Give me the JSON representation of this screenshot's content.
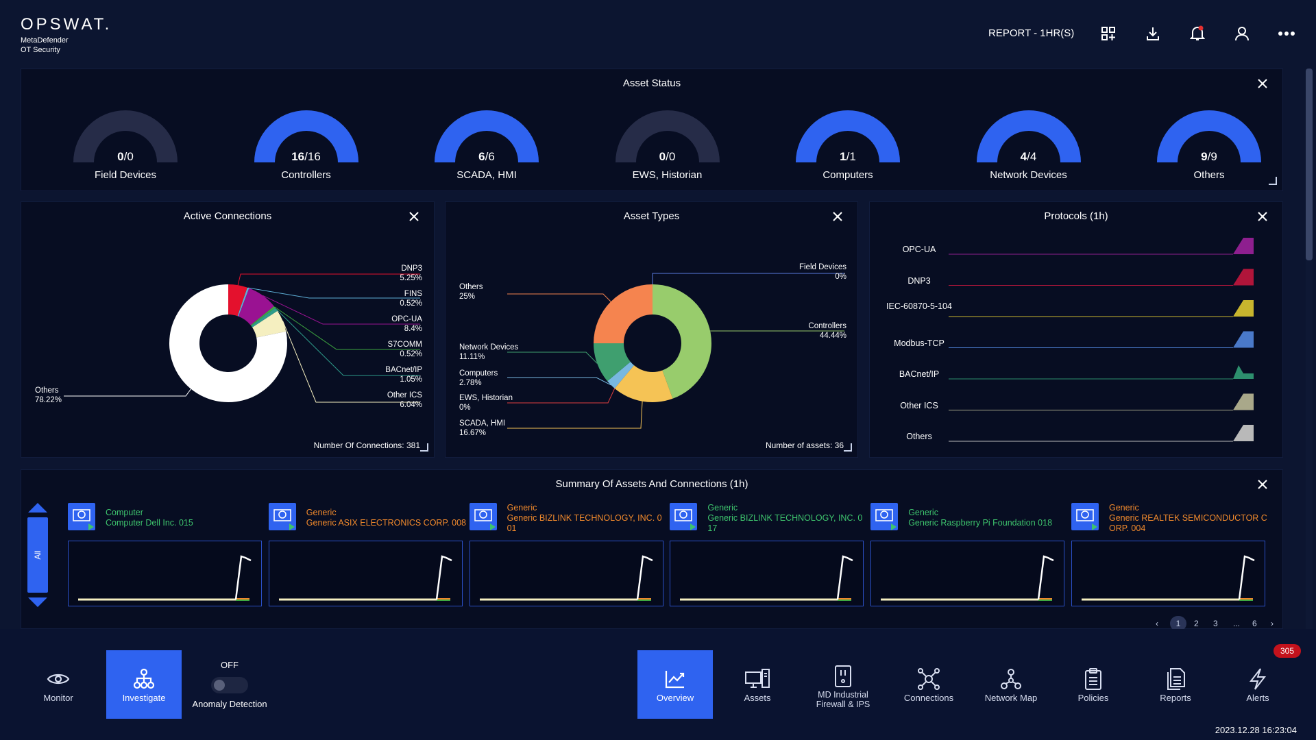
{
  "header": {
    "brand": "OPSWAT.",
    "product_line1": "MetaDefender",
    "product_line2": "OT Security",
    "report_label": "REPORT - 1HR(S)"
  },
  "asset_status": {
    "title": "Asset Status",
    "gauges": [
      {
        "label": "Field Devices",
        "num": "0",
        "den": "/0",
        "fraction": 0
      },
      {
        "label": "Controllers",
        "num": "16",
        "den": "/16",
        "fraction": 1
      },
      {
        "label": "SCADA, HMI",
        "num": "6",
        "den": "/6",
        "fraction": 1
      },
      {
        "label": "EWS, Historian",
        "num": "0",
        "den": "/0",
        "fraction": 0
      },
      {
        "label": "Computers",
        "num": "1",
        "den": "/1",
        "fraction": 1
      },
      {
        "label": "Network Devices",
        "num": "4",
        "den": "/4",
        "fraction": 1
      },
      {
        "label": "Others",
        "num": "9",
        "den": "/9",
        "fraction": 1
      }
    ]
  },
  "active_connections": {
    "title": "Active Connections",
    "footer": "Number Of Connections: 381"
  },
  "asset_types": {
    "title": "Asset Types",
    "footer": "Number of assets: 36"
  },
  "protocols": {
    "title": "Protocols (1h)",
    "rows": [
      {
        "name": "OPC-UA",
        "color": "#8e1f8f"
      },
      {
        "name": "DNP3",
        "color": "#b0153a"
      },
      {
        "name": "IEC-60870-5-104",
        "color": "#c8b52e"
      },
      {
        "name": "Modbus-TCP",
        "color": "#4a79c9"
      },
      {
        "name": "BACnet/IP",
        "color": "#2d8f6e"
      },
      {
        "name": "Other ICS",
        "color": "#a9a88a"
      },
      {
        "name": "Others",
        "color": "#b9b9b9"
      }
    ]
  },
  "chart_data": [
    {
      "type": "pie",
      "title": "Active Connections",
      "categories": [
        "DNP3",
        "FINS",
        "OPC-UA",
        "S7COMM",
        "BACnet/IP",
        "Other ICS",
        "Others"
      ],
      "values": [
        5.25,
        0.52,
        8.4,
        0.52,
        1.05,
        6.04,
        78.22
      ],
      "labels_text": [
        "5.25%",
        "0.52%",
        "8.4%",
        "0.52%",
        "1.05%",
        "6.04%",
        "78.22%"
      ],
      "colors": [
        "#e4112d",
        "#5fb0d8",
        "#9a1292",
        "#3ea840",
        "#2e9c8a",
        "#f5efc0",
        "#ffffff"
      ]
    },
    {
      "type": "pie",
      "title": "Asset Types",
      "categories": [
        "Controllers",
        "SCADA, HMI",
        "EWS, Historian",
        "Computers",
        "Network Devices",
        "Others",
        "Field Devices"
      ],
      "values": [
        44.44,
        16.67,
        0,
        2.78,
        11.11,
        25,
        0
      ],
      "labels_text": [
        "44.44%",
        "16.67%",
        "0%",
        "2.78%",
        "11.11%",
        "25%",
        "0%"
      ],
      "colors": [
        "#98cc6c",
        "#f5c355",
        "#e04040",
        "#78b8e0",
        "#3f9f6f",
        "#f5844f",
        "#5a7be0"
      ]
    }
  ],
  "summary": {
    "title": "Summary Of Assets And Connections (1h)",
    "filter_label": "All",
    "cards": [
      {
        "type": "Computer",
        "name": "Computer Dell Inc. 015",
        "color": "#3ec46d"
      },
      {
        "type": "Generic",
        "name": "Generic ASIX ELECTRONICS CORP. 008",
        "color": "#f28a2c"
      },
      {
        "type": "Generic",
        "name": "Generic BIZLINK TECHNOLOGY, INC. 0\n01",
        "color": "#f28a2c"
      },
      {
        "type": "Generic",
        "name": "Generic BIZLINK TECHNOLOGY, INC. 0\n17",
        "color": "#3ec46d"
      },
      {
        "type": "Generic",
        "name": "Generic Raspberry Pi Foundation 018",
        "color": "#3ec46d"
      },
      {
        "type": "Generic",
        "name": "Generic REALTEK SEMICONDUCTOR C\nORP. 004",
        "color": "#f28a2c"
      }
    ],
    "pager": {
      "p1": "1",
      "p2": "2",
      "p3": "3",
      "dots": "...",
      "last": "6"
    }
  },
  "footer": {
    "monitor": "Monitor",
    "investigate": "Investigate",
    "anomaly_state": "OFF",
    "anomaly_label": "Anomaly Detection",
    "overview": "Overview",
    "assets": "Assets",
    "firewall_line1": "MD Industrial",
    "firewall_line2": "Firewall & IPS",
    "connections": "Connections",
    "network_map": "Network Map",
    "policies": "Policies",
    "reports": "Reports",
    "alerts": "Alerts",
    "alerts_badge": "305",
    "datetime": "2023.12.28 16:23:04"
  },
  "icons": [
    "apps-add-icon",
    "download-icon",
    "bell-icon",
    "user-icon",
    "more-icon",
    "close-icon",
    "eye-icon",
    "hierarchy-icon",
    "chart-icon",
    "computer-icon",
    "firewall-icon",
    "network-icon",
    "clipboard-icon",
    "reports-icon",
    "lightning-icon"
  ]
}
